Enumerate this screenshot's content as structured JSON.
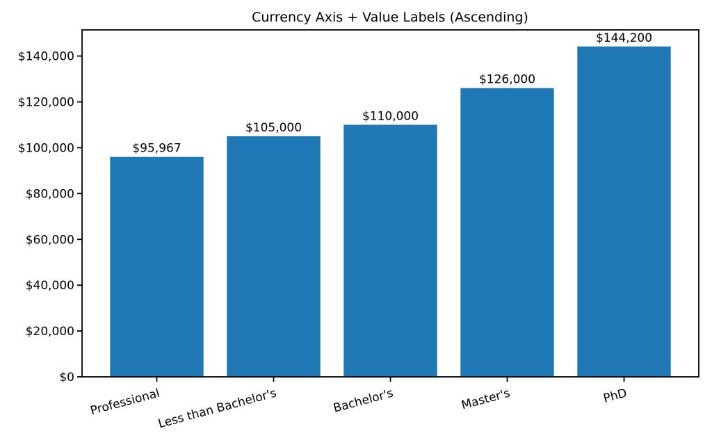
{
  "chart_data": {
    "type": "bar",
    "title": "Currency Axis + Value Labels (Ascending)",
    "categories": [
      "Professional",
      "Less than Bachelor's",
      "Bachelor's",
      "Master's",
      "PhD"
    ],
    "values": [
      95967,
      105000,
      110000,
      126000,
      144200
    ],
    "value_labels": [
      "$95,967",
      "$105,000",
      "$110,000",
      "$126,000",
      "$144,200"
    ],
    "y_ticks": [
      0,
      20000,
      40000,
      60000,
      80000,
      100000,
      120000,
      140000
    ],
    "y_tick_labels": [
      "$0",
      "$20,000",
      "$40,000",
      "$60,000",
      "$80,000",
      "$100,000",
      "$120,000",
      "$140,000"
    ],
    "ylim": [
      0,
      151410
    ],
    "xlabel": "",
    "ylabel": "",
    "bar_color": "#1f77b4",
    "text_color": "#000000",
    "background_color": "#ffffff",
    "grid": false,
    "legend_position": "none",
    "x_tick_rotation_deg": -15
  }
}
